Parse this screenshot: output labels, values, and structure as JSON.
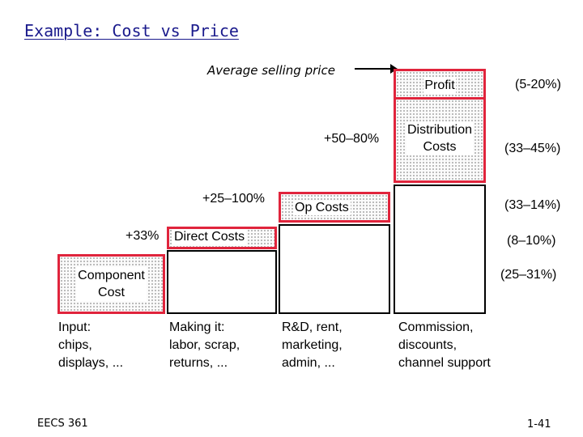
{
  "title": "Example: Cost vs Price",
  "avg_label": "Average selling price",
  "markups": {
    "distribution": "+50–80%",
    "op": "+25–100%",
    "direct": "+33%"
  },
  "boxes": {
    "profit": "Profit",
    "distribution": "Distribution\nCosts",
    "op": "Op Costs",
    "direct": "Direct Costs",
    "component": "Component\nCost"
  },
  "percentages": {
    "profit": "(5-20%)",
    "distribution": "(33–45%)",
    "op": "(33–14%)",
    "direct": "(8–10%)",
    "component": "(25–31%)"
  },
  "notes": {
    "input": "Input:\nchips,\ndisplays, ...",
    "making": "Making it:\nlabor, scrap,\nreturns, ...",
    "rd": "R&D, rent,\nmarketing,\nadmin, ...",
    "commission": "Commission,\ndiscounts,\nchannel support"
  },
  "footer": {
    "course": "EECS 361",
    "page": "1-41"
  }
}
